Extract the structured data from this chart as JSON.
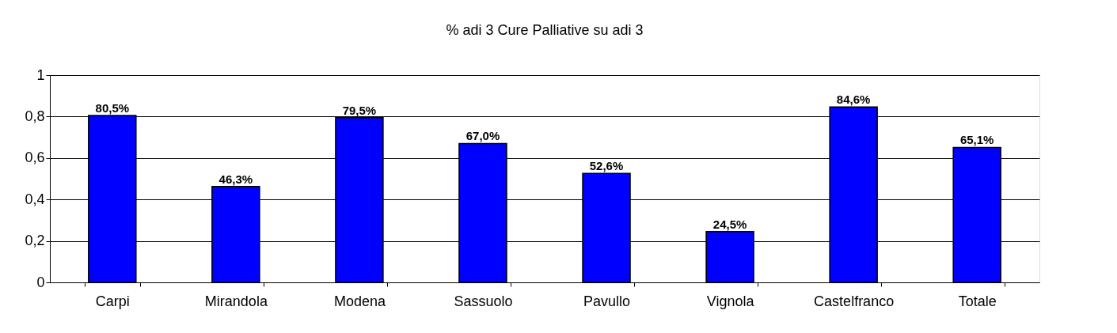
{
  "chart_data": {
    "type": "bar",
    "title": "% adi 3 Cure Palliative su adi 3",
    "categories": [
      "Carpi",
      "Mirandola",
      "Modena",
      "Sassuolo",
      "Pavullo",
      "Vignola",
      "Castelfranco",
      "Totale"
    ],
    "values": [
      0.805,
      0.463,
      0.795,
      0.67,
      0.526,
      0.245,
      0.846,
      0.651
    ],
    "value_labels": [
      "80,5%",
      "46,3%",
      "79,5%",
      "67,0%",
      "52,6%",
      "24,5%",
      "84,6%",
      "65,1%"
    ],
    "color": "#0000ff",
    "ylim": [
      0,
      1
    ],
    "yticks": [
      0,
      {
        "value": 0.2,
        "label": "0,2"
      },
      {
        "value": 0.4,
        "label": "0,4"
      },
      {
        "value": 0.6,
        "label": "0,6"
      },
      {
        "value": 0.8,
        "label": "0,8"
      },
      1
    ],
    "grid": "y"
  }
}
